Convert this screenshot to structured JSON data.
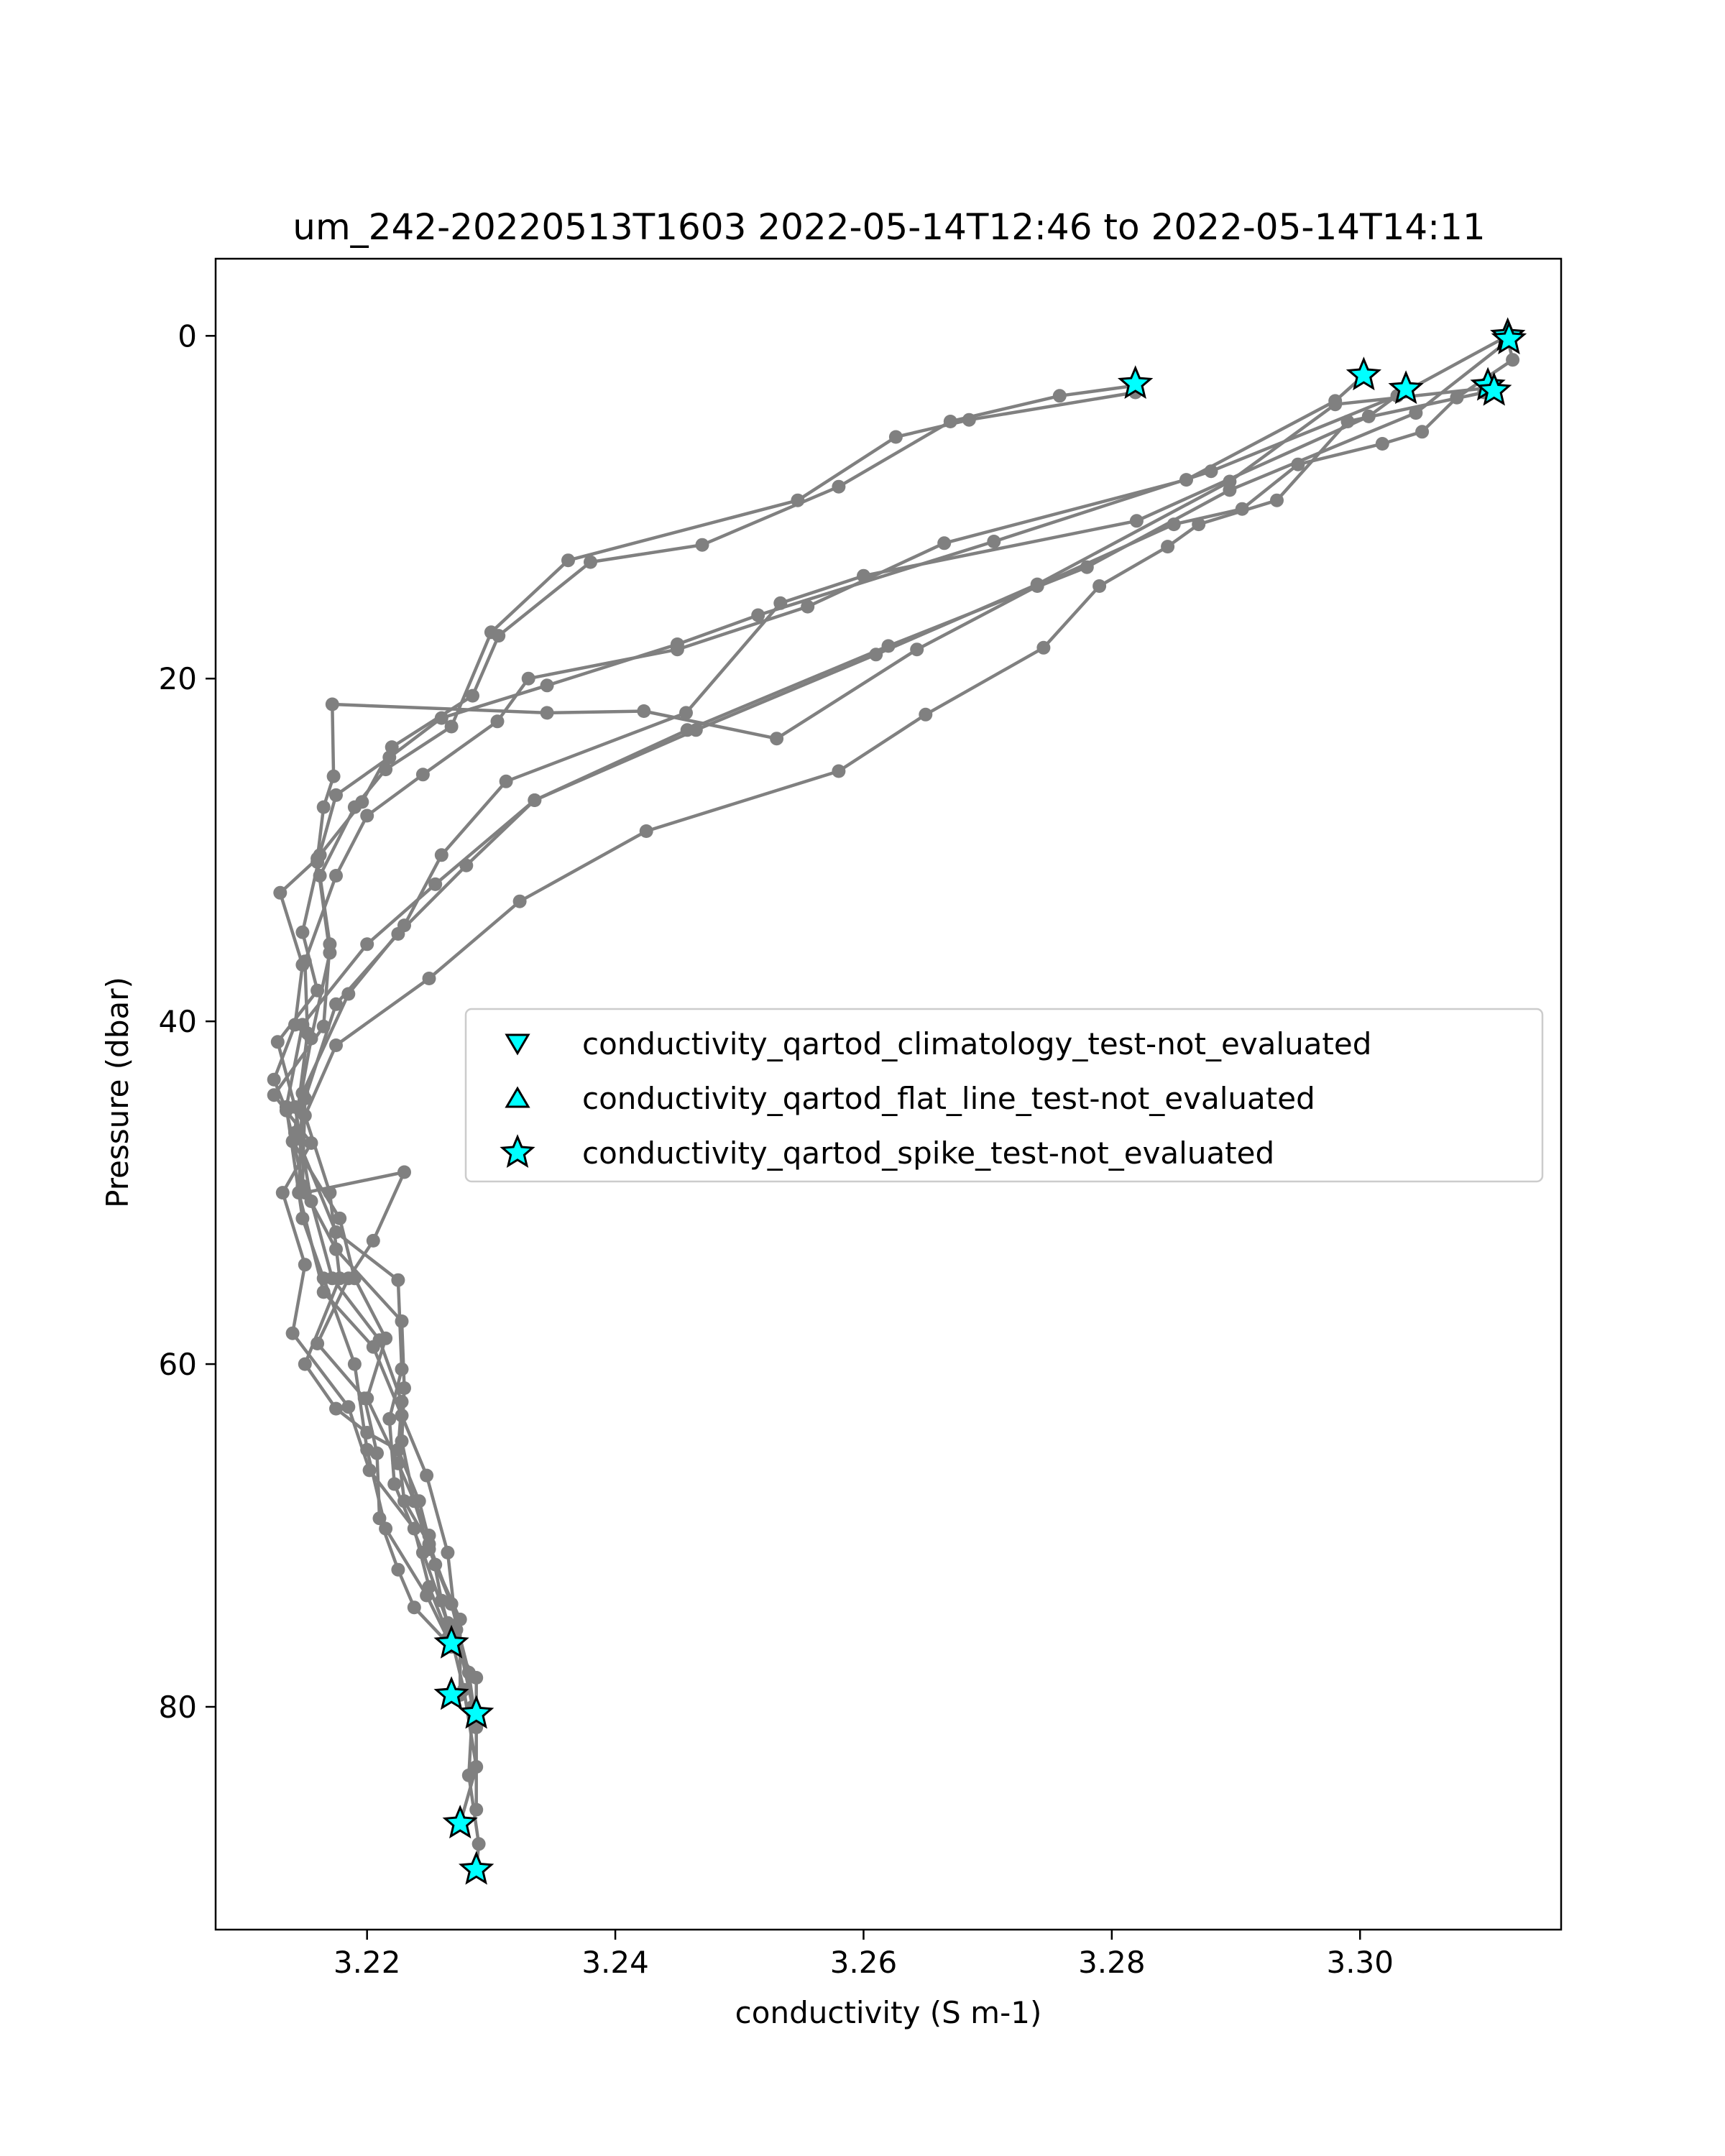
{
  "chart_data": {
    "type": "line",
    "title": "um_242-20220513T1603 2022-05-14T12:46 to 2022-05-14T14:11",
    "xlabel": "conductivity (S m-1)",
    "ylabel": "Pressure (dbar)",
    "xlim": [
      3.2078,
      3.3162
    ],
    "ylim": [
      93,
      -4.5
    ],
    "y_inverted": true,
    "grid": false,
    "xticks": [
      3.22,
      3.24,
      3.26,
      3.28,
      3.3
    ],
    "xtick_labels": [
      "3.22",
      "3.24",
      "3.26",
      "3.28",
      "3.30"
    ],
    "yticks": [
      0,
      20,
      40,
      60,
      80
    ],
    "ytick_labels": [
      "0",
      "20",
      "40",
      "60",
      "80"
    ],
    "legend_position": "center-right",
    "colors": {
      "profile_line": "#808080",
      "flag_fill": "#00ffff",
      "flag_edge": "#000000"
    },
    "series": [
      {
        "kind": "profile",
        "points": [
          [
            3.2819,
            2.9
          ],
          [
            3.2758,
            3.5
          ],
          [
            3.267,
            5.0
          ],
          [
            3.258,
            8.8
          ],
          [
            3.247,
            12.2
          ],
          [
            3.238,
            13.2
          ],
          [
            3.2306,
            17.5
          ],
          [
            3.2285,
            21.0
          ],
          [
            3.222,
            24.0
          ],
          [
            3.2196,
            27.2
          ],
          [
            3.2162,
            30.3
          ],
          [
            3.2148,
            34.8
          ],
          [
            3.216,
            38.2
          ],
          [
            3.2128,
            41.2
          ],
          [
            3.2142,
            45.0
          ],
          [
            3.2155,
            50.5
          ],
          [
            3.2172,
            55.0
          ],
          [
            3.221,
            58.6
          ],
          [
            3.2228,
            62.2
          ],
          [
            3.2225,
            65.0
          ],
          [
            3.2242,
            68.0
          ],
          [
            3.2255,
            71.7
          ],
          [
            3.2275,
            74.9
          ],
          [
            3.2275,
            79.3
          ]
        ]
      },
      {
        "kind": "profile",
        "points": [
          [
            3.2819,
            3.3
          ],
          [
            3.2685,
            4.9
          ],
          [
            3.2626,
            5.9
          ],
          [
            3.2547,
            9.6
          ],
          [
            3.2362,
            13.1
          ],
          [
            3.23,
            17.3
          ],
          [
            3.2268,
            22.8
          ],
          [
            3.2215,
            25.3
          ],
          [
            3.219,
            27.5
          ],
          [
            3.2162,
            31.5
          ],
          [
            3.217,
            35.5
          ],
          [
            3.2165,
            40.3
          ],
          [
            3.2125,
            44.3
          ],
          [
            3.2155,
            47.1
          ],
          [
            3.2132,
            50.0
          ],
          [
            3.215,
            54.2
          ],
          [
            3.214,
            58.2
          ],
          [
            3.2185,
            62.5
          ],
          [
            3.2202,
            66.2
          ],
          [
            3.2238,
            69.6
          ],
          [
            3.225,
            73.0
          ],
          [
            3.2268,
            76.3
          ],
          [
            3.2288,
            78.3
          ],
          [
            3.2288,
            80.4
          ]
        ]
      },
      {
        "kind": "profile",
        "points": [
          [
            3.3119,
            0.0
          ],
          [
            3.303,
            3.5
          ],
          [
            3.288,
            7.9
          ],
          [
            3.2705,
            12.0
          ],
          [
            3.2515,
            16.3
          ],
          [
            3.245,
            18.0
          ],
          [
            3.2345,
            20.4
          ],
          [
            3.226,
            22.3
          ],
          [
            3.2218,
            24.6
          ],
          [
            3.2175,
            26.8
          ],
          [
            3.216,
            30.7
          ],
          [
            3.217,
            36.0
          ],
          [
            3.2155,
            41.0
          ],
          [
            3.214,
            47.0
          ],
          [
            3.2178,
            51.5
          ],
          [
            3.219,
            55.0
          ],
          [
            3.2215,
            58.5
          ],
          [
            3.22,
            62.0
          ],
          [
            3.2225,
            65.8
          ],
          [
            3.225,
            70.0
          ],
          [
            3.226,
            73.8
          ],
          [
            3.227,
            76.5
          ]
        ]
      },
      {
        "kind": "profile",
        "points": [
          [
            3.3003,
            2.3
          ],
          [
            3.298,
            3.8
          ],
          [
            3.286,
            8.4
          ],
          [
            3.2665,
            12.1
          ],
          [
            3.2555,
            15.8
          ],
          [
            3.245,
            18.3
          ],
          [
            3.233,
            20.0
          ],
          [
            3.2305,
            22.5
          ],
          [
            3.2245,
            25.6
          ],
          [
            3.22,
            28.0
          ],
          [
            3.2175,
            31.5
          ],
          [
            3.215,
            36.5
          ],
          [
            3.2152,
            40.7
          ],
          [
            3.2142,
            46.5
          ],
          [
            3.2175,
            52.3
          ],
          [
            3.2225,
            55.1
          ],
          [
            3.2228,
            60.3
          ],
          [
            3.2218,
            63.2
          ],
          [
            3.2222,
            67.0
          ],
          [
            3.2245,
            71.0
          ],
          [
            3.2265,
            75.1
          ],
          [
            3.2278,
            79.0
          ],
          [
            3.2288,
            83.5
          ],
          [
            3.2275,
            86.8
          ]
        ]
      },
      {
        "kind": "profile",
        "points": [
          [
            3.3037,
            3.1
          ],
          [
            3.3007,
            4.7
          ],
          [
            3.282,
            10.8
          ],
          [
            3.26,
            14.0
          ],
          [
            3.2533,
            15.6
          ],
          [
            3.2457,
            22.0
          ],
          [
            3.2312,
            26.0
          ],
          [
            3.226,
            30.3
          ],
          [
            3.223,
            34.4
          ],
          [
            3.2185,
            38.4
          ],
          [
            3.2148,
            44.2
          ],
          [
            3.2145,
            50.0
          ],
          [
            3.2165,
            55.8
          ],
          [
            3.2205,
            59.0
          ],
          [
            3.2228,
            63.0
          ],
          [
            3.2248,
            66.5
          ],
          [
            3.2265,
            71.0
          ],
          [
            3.2272,
            75.5
          ],
          [
            3.2285,
            80.0
          ],
          [
            3.2282,
            84.0
          ],
          [
            3.229,
            88.0
          ],
          [
            3.2288,
            89.5
          ]
        ]
      },
      {
        "kind": "profile",
        "points": [
          [
            3.3108,
            3.0
          ],
          [
            3.298,
            4.0
          ],
          [
            3.2895,
            8.5
          ],
          [
            3.274,
            14.5
          ],
          [
            3.261,
            18.6
          ],
          [
            3.2465,
            23.0
          ],
          [
            3.2335,
            27.1
          ],
          [
            3.228,
            30.9
          ],
          [
            3.2225,
            34.9
          ],
          [
            3.2175,
            39.0
          ],
          [
            3.215,
            44.5
          ],
          [
            3.2148,
            49.6
          ],
          [
            3.2175,
            53.3
          ],
          [
            3.2228,
            57.5
          ],
          [
            3.223,
            61.4
          ],
          [
            3.2228,
            64.5
          ],
          [
            3.2238,
            68.0
          ],
          [
            3.225,
            70.8
          ],
          [
            3.2268,
            74.0
          ],
          [
            3.2282,
            78.0
          ],
          [
            3.2288,
            81.2
          ],
          [
            3.2288,
            86.0
          ]
        ]
      },
      {
        "kind": "profile",
        "points": [
          [
            3.3119,
            0.3
          ],
          [
            3.3045,
            4.5
          ],
          [
            3.2895,
            9.0
          ],
          [
            3.278,
            13.5
          ],
          [
            3.262,
            18.1
          ],
          [
            3.2458,
            23.0
          ],
          [
            3.2335,
            27.1
          ],
          [
            3.2255,
            32.0
          ],
          [
            3.22,
            35.5
          ],
          [
            3.2148,
            40.2
          ],
          [
            3.2135,
            45.0
          ],
          [
            3.2148,
            51.5
          ],
          [
            3.2165,
            55.0
          ],
          [
            3.219,
            60.0
          ],
          [
            3.22,
            65.0
          ],
          [
            3.2215,
            69.6
          ],
          [
            3.2248,
            73.5
          ],
          [
            3.2265,
            76.0
          ]
        ]
      },
      {
        "kind": "profile",
        "points": [
          [
            3.31,
            3.3
          ],
          [
            3.299,
            5.0
          ],
          [
            3.2933,
            9.6
          ],
          [
            3.287,
            11.0
          ],
          [
            3.2845,
            12.3
          ],
          [
            3.279,
            14.6
          ],
          [
            3.2745,
            18.2
          ],
          [
            3.265,
            22.1
          ],
          [
            3.258,
            25.4
          ],
          [
            3.2425,
            28.9
          ],
          [
            3.2323,
            33.0
          ],
          [
            3.225,
            37.5
          ],
          [
            3.2175,
            41.4
          ],
          [
            3.215,
            45.5
          ],
          [
            3.217,
            50.0
          ],
          [
            3.2178,
            55.0
          ],
          [
            3.215,
            60.0
          ],
          [
            3.2175,
            62.6
          ],
          [
            3.22,
            64.0
          ],
          [
            3.2225,
            65.0
          ],
          [
            3.223,
            68.0
          ],
          [
            3.225,
            70.5
          ],
          [
            3.2268,
            74.0
          ]
        ]
      },
      {
        "kind": "profile",
        "points": [
          [
            3.3119,
            0.2
          ],
          [
            3.3123,
            1.4
          ],
          [
            3.3078,
            3.6
          ],
          [
            3.305,
            5.6
          ],
          [
            3.3018,
            6.3
          ],
          [
            3.295,
            7.5
          ],
          [
            3.2905,
            10.1
          ],
          [
            3.285,
            11.0
          ],
          [
            3.274,
            14.6
          ],
          [
            3.2643,
            18.3
          ],
          [
            3.253,
            23.5
          ],
          [
            3.2423,
            21.9
          ],
          [
            3.2345,
            22.0
          ],
          [
            3.2172,
            21.5
          ],
          [
            3.2173,
            25.7
          ],
          [
            3.2165,
            27.5
          ],
          [
            3.216,
            30.5
          ],
          [
            3.213,
            32.5
          ],
          [
            3.2148,
            36.7
          ],
          [
            3.2142,
            40.2
          ],
          [
            3.2125,
            43.4
          ],
          [
            3.2135,
            45.2
          ],
          [
            3.215,
            50.0
          ],
          [
            3.223,
            48.8
          ],
          [
            3.2205,
            52.8
          ],
          [
            3.2185,
            55.0
          ],
          [
            3.216,
            58.8
          ],
          [
            3.2198,
            62.0
          ],
          [
            3.2208,
            65.2
          ],
          [
            3.221,
            69.0
          ],
          [
            3.2225,
            72.0
          ],
          [
            3.2238,
            74.2
          ],
          [
            3.2268,
            76.5
          ]
        ]
      }
    ],
    "flag_series": [
      {
        "name": "conductivity_qartod_climatology_test-not_evaluated",
        "marker": "triangle-down",
        "points": []
      },
      {
        "name": "conductivity_qartod_flat_line_test-not_evaluated",
        "marker": "triangle-up",
        "points": []
      },
      {
        "name": "conductivity_qartod_spike_test-not_evaluated",
        "marker": "star",
        "points": [
          [
            3.3119,
            0.0
          ],
          [
            3.312,
            0.2
          ],
          [
            3.3003,
            2.3
          ],
          [
            3.2819,
            2.8
          ],
          [
            3.3037,
            3.1
          ],
          [
            3.3103,
            2.9
          ],
          [
            3.3108,
            3.2
          ],
          [
            3.2268,
            76.3
          ],
          [
            3.2268,
            79.3
          ],
          [
            3.2288,
            80.4
          ],
          [
            3.2275,
            86.8
          ],
          [
            3.2288,
            89.5
          ]
        ]
      }
    ]
  }
}
